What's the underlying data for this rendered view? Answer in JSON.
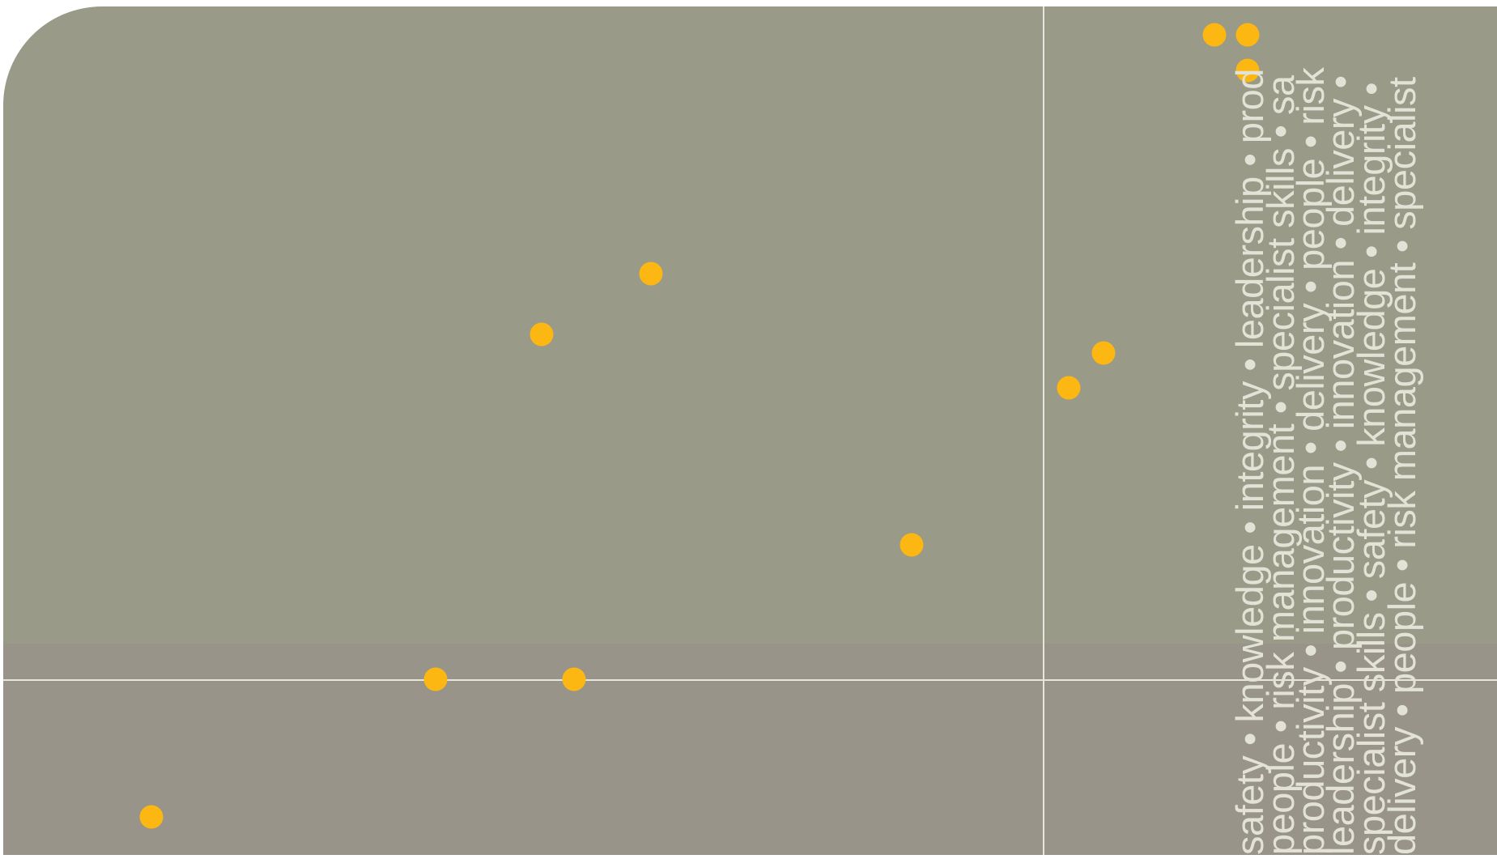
{
  "colors": {
    "panel_upper": "#9a9a88",
    "panel_lower": "#989489",
    "divider_line": "#e6e6dc",
    "dot": "#fdb713",
    "word_text": "#e2e2d6"
  },
  "dots_icon": "circle-dot",
  "word_lines": [
    "safety • knowledge • integrity • leadership • prod",
    "people • risk management • specialist skills • sa",
    "productivity • innovation • delivery • people • risk",
    "leadership • productivity • innovation • delivery •",
    "specialist skills • safety • knowledge • integrity •",
    "delivery • people • risk management • specialist"
  ]
}
